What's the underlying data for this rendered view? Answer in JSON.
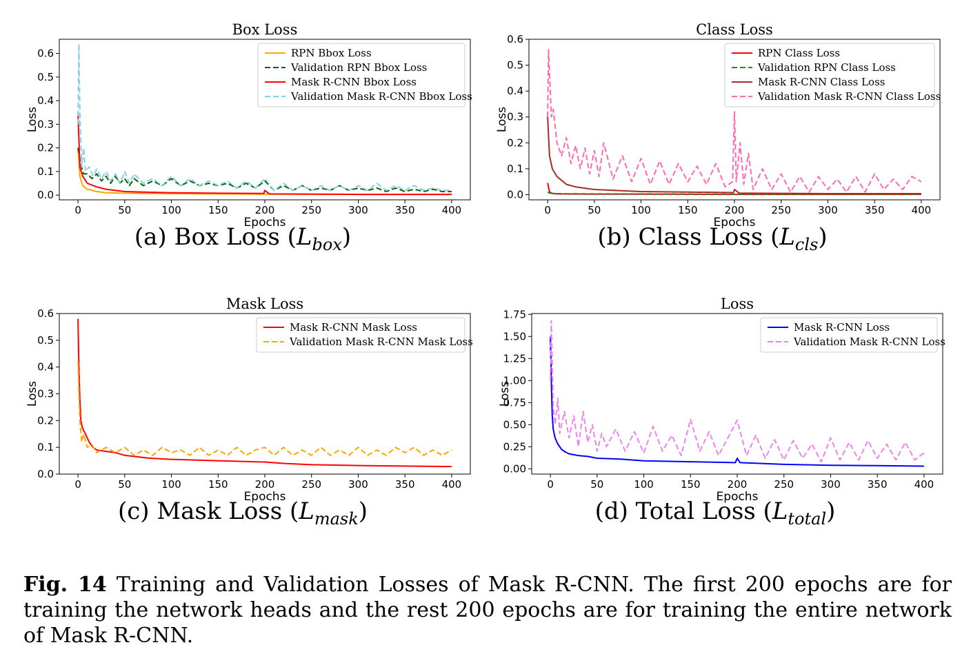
{
  "figure": {
    "caption_label": "Fig. 14",
    "caption_text": "Training and Validation Losses of Mask R-CNN. The first 200 epochs are for training the network heads and the rest 200 epochs are for training the entire network of Mask R-CNN."
  },
  "chart_data": [
    {
      "type": "line",
      "title": "Box Loss",
      "subcaption": {
        "prefix": "(a) Box Loss (",
        "var": "L",
        "sub": "box",
        "suffix": ")"
      },
      "xlabel": "Epochs",
      "ylabel": "Loss",
      "xlim": [
        -20,
        420
      ],
      "ylim": [
        -0.02,
        0.66
      ],
      "xticks": [
        0,
        50,
        100,
        150,
        200,
        250,
        300,
        350,
        400
      ],
      "yticks": [
        0.0,
        0.1,
        0.2,
        0.3,
        0.4,
        0.5,
        0.6
      ],
      "yfmt": 1,
      "legend_position": "top-right",
      "series": [
        {
          "name": "RPN Bbox Loss",
          "color": "#ffa500",
          "dash": "solid",
          "x": [
            0,
            2,
            5,
            10,
            20,
            30,
            50,
            100,
            150,
            200,
            250,
            300,
            350,
            400
          ],
          "y": [
            0.2,
            0.08,
            0.04,
            0.025,
            0.015,
            0.01,
            0.008,
            0.006,
            0.005,
            0.004,
            0.004,
            0.003,
            0.003,
            0.003
          ]
        },
        {
          "name": "Validation RPN Bbox Loss",
          "color": "#006400",
          "dash": "dashed",
          "x": [
            0,
            3,
            6,
            10,
            15,
            20,
            25,
            30,
            35,
            40,
            45,
            50,
            55,
            60,
            70,
            80,
            90,
            100,
            110,
            120,
            130,
            140,
            150,
            160,
            170,
            180,
            190,
            200,
            210,
            220,
            230,
            240,
            250,
            260,
            270,
            280,
            290,
            300,
            310,
            320,
            330,
            340,
            350,
            360,
            370,
            380,
            390,
            400
          ],
          "y": [
            0.2,
            0.13,
            0.09,
            0.09,
            0.07,
            0.09,
            0.06,
            0.08,
            0.05,
            0.08,
            0.05,
            0.07,
            0.04,
            0.07,
            0.04,
            0.06,
            0.04,
            0.07,
            0.04,
            0.06,
            0.04,
            0.05,
            0.04,
            0.05,
            0.03,
            0.05,
            0.03,
            0.06,
            0.02,
            0.04,
            0.02,
            0.04,
            0.02,
            0.03,
            0.02,
            0.04,
            0.02,
            0.03,
            0.02,
            0.03,
            0.015,
            0.03,
            0.015,
            0.025,
            0.015,
            0.025,
            0.015,
            0.015
          ]
        },
        {
          "name": "Mask R-CNN Bbox Loss",
          "color": "#ff0000",
          "dash": "solid",
          "x": [
            0,
            2,
            5,
            10,
            20,
            30,
            50,
            100,
            150,
            199,
            200,
            205,
            250,
            300,
            350,
            400
          ],
          "y": [
            0.35,
            0.12,
            0.08,
            0.05,
            0.035,
            0.025,
            0.015,
            0.01,
            0.008,
            0.007,
            0.02,
            0.005,
            0.004,
            0.003,
            0.003,
            0.003
          ]
        },
        {
          "name": "Validation Mask R-CNN Bbox Loss",
          "color": "#87ceeb",
          "dash": "dashed",
          "x": [
            0,
            1,
            2,
            4,
            6,
            8,
            12,
            16,
            20,
            25,
            30,
            35,
            40,
            45,
            50,
            55,
            60,
            70,
            80,
            90,
            100,
            110,
            120,
            130,
            140,
            150,
            160,
            170,
            180,
            190,
            200,
            210,
            220,
            230,
            240,
            250,
            260,
            270,
            280,
            290,
            300,
            310,
            320,
            330,
            340,
            350,
            360,
            370,
            380,
            390,
            400
          ],
          "y": [
            0.3,
            0.64,
            0.35,
            0.12,
            0.2,
            0.1,
            0.12,
            0.08,
            0.11,
            0.07,
            0.1,
            0.06,
            0.09,
            0.05,
            0.1,
            0.05,
            0.09,
            0.05,
            0.07,
            0.04,
            0.08,
            0.04,
            0.07,
            0.04,
            0.06,
            0.04,
            0.06,
            0.03,
            0.06,
            0.03,
            0.07,
            0.02,
            0.05,
            0.02,
            0.04,
            0.02,
            0.04,
            0.02,
            0.04,
            0.02,
            0.04,
            0.02,
            0.05,
            0.02,
            0.04,
            0.02,
            0.04,
            0.02,
            0.03,
            0.02,
            0.02
          ]
        }
      ]
    },
    {
      "type": "line",
      "title": "Class Loss",
      "subcaption": {
        "prefix": "(b) Class Loss (",
        "var": "L",
        "sub": "cls",
        "suffix": ")"
      },
      "xlabel": "Epochs",
      "ylabel": "Loss",
      "xlim": [
        -20,
        420
      ],
      "ylim": [
        -0.02,
        0.6
      ],
      "xticks": [
        0,
        50,
        100,
        150,
        200,
        250,
        300,
        350,
        400
      ],
      "yticks": [
        0.0,
        0.1,
        0.2,
        0.3,
        0.4,
        0.5,
        0.6
      ],
      "yfmt": 1,
      "legend_position": "top-right",
      "series": [
        {
          "name": "RPN Class Loss",
          "color": "#ff0000",
          "dash": "solid",
          "x": [
            0,
            2,
            5,
            10,
            50,
            100,
            200,
            300,
            400
          ],
          "y": [
            0.045,
            0.01,
            0.005,
            0.003,
            0.002,
            0.002,
            0.001,
            0.001,
            0.001
          ]
        },
        {
          "name": "Validation RPN Class Loss",
          "color": "#228b22",
          "dash": "dashed",
          "x": [
            0,
            2,
            5,
            10,
            50,
            100,
            200,
            300,
            400
          ],
          "y": [
            0.01,
            0.006,
            0.005,
            0.004,
            0.003,
            0.003,
            0.002,
            0.002,
            0.002
          ]
        },
        {
          "name": "Mask R-CNN Class Loss",
          "color": "#a52a2a",
          "dash": "solid",
          "x": [
            0,
            2,
            5,
            10,
            20,
            30,
            50,
            100,
            150,
            199,
            200,
            205,
            250,
            300,
            350,
            400
          ],
          "y": [
            0.3,
            0.15,
            0.1,
            0.07,
            0.04,
            0.03,
            0.02,
            0.012,
            0.01,
            0.008,
            0.02,
            0.006,
            0.005,
            0.004,
            0.004,
            0.004
          ]
        },
        {
          "name": "Validation Mask R-CNN Class Loss",
          "color": "#ff69b4",
          "dash": "dashed",
          "x": [
            0,
            1,
            2,
            4,
            6,
            10,
            15,
            20,
            25,
            30,
            35,
            40,
            45,
            50,
            55,
            60,
            70,
            80,
            90,
            100,
            110,
            120,
            130,
            140,
            150,
            160,
            170,
            180,
            190,
            198,
            200,
            202,
            206,
            210,
            215,
            220,
            230,
            240,
            250,
            260,
            270,
            280,
            290,
            300,
            310,
            320,
            330,
            340,
            350,
            360,
            370,
            380,
            390,
            400
          ],
          "y": [
            0.3,
            0.56,
            0.47,
            0.3,
            0.33,
            0.2,
            0.15,
            0.22,
            0.12,
            0.19,
            0.1,
            0.18,
            0.08,
            0.17,
            0.07,
            0.2,
            0.06,
            0.15,
            0.05,
            0.14,
            0.04,
            0.13,
            0.04,
            0.12,
            0.05,
            0.11,
            0.04,
            0.12,
            0.03,
            0.05,
            0.32,
            0.05,
            0.2,
            0.04,
            0.16,
            0.02,
            0.1,
            0.02,
            0.08,
            0.01,
            0.07,
            0.01,
            0.07,
            0.02,
            0.06,
            0.01,
            0.07,
            0.01,
            0.08,
            0.02,
            0.06,
            0.02,
            0.07,
            0.05
          ]
        }
      ]
    },
    {
      "type": "line",
      "title": "Mask Loss",
      "subcaption": {
        "prefix": "(c) Mask Loss (",
        "var": "L",
        "sub": "mask",
        "suffix": ")"
      },
      "xlabel": "Epochs",
      "ylabel": "Loss",
      "xlim": [
        -20,
        420
      ],
      "ylim": [
        0.0,
        0.6
      ],
      "xticks": [
        0,
        50,
        100,
        150,
        200,
        250,
        300,
        350,
        400
      ],
      "yticks": [
        0.0,
        0.1,
        0.2,
        0.3,
        0.4,
        0.5,
        0.6
      ],
      "yfmt": 1,
      "legend_position": "top-right",
      "series": [
        {
          "name": "Mask R-CNN Mask Loss",
          "color": "#ff0000",
          "dash": "solid",
          "x": [
            0,
            1,
            2,
            3,
            5,
            8,
            12,
            16,
            20,
            30,
            40,
            50,
            75,
            100,
            150,
            200,
            220,
            250,
            300,
            350,
            400
          ],
          "y": [
            0.58,
            0.4,
            0.28,
            0.2,
            0.17,
            0.15,
            0.12,
            0.1,
            0.09,
            0.085,
            0.08,
            0.07,
            0.06,
            0.055,
            0.05,
            0.045,
            0.04,
            0.035,
            0.032,
            0.03,
            0.028
          ]
        },
        {
          "name": "Validation Mask R-CNN Mask Loss",
          "color": "#ffa500",
          "dash": "dashed",
          "x": [
            0,
            1,
            2,
            4,
            6,
            10,
            15,
            20,
            30,
            40,
            50,
            60,
            70,
            80,
            90,
            100,
            110,
            120,
            130,
            140,
            150,
            160,
            170,
            180,
            190,
            200,
            210,
            220,
            230,
            240,
            250,
            260,
            270,
            280,
            290,
            300,
            310,
            320,
            330,
            340,
            350,
            360,
            370,
            380,
            390,
            400
          ],
          "y": [
            0.42,
            0.3,
            0.2,
            0.12,
            0.15,
            0.1,
            0.11,
            0.08,
            0.1,
            0.08,
            0.1,
            0.07,
            0.09,
            0.07,
            0.1,
            0.08,
            0.09,
            0.07,
            0.1,
            0.07,
            0.09,
            0.07,
            0.1,
            0.07,
            0.09,
            0.1,
            0.07,
            0.1,
            0.07,
            0.09,
            0.07,
            0.1,
            0.07,
            0.09,
            0.07,
            0.1,
            0.07,
            0.09,
            0.07,
            0.1,
            0.08,
            0.1,
            0.07,
            0.09,
            0.07,
            0.09
          ]
        }
      ]
    },
    {
      "type": "line",
      "title": "Loss",
      "subcaption": {
        "prefix": "(d) Total Loss (",
        "var": "L",
        "sub": "total",
        "suffix": ")"
      },
      "xlabel": "Epochs",
      "ylabel": "Loss",
      "xlim": [
        -20,
        420
      ],
      "ylim": [
        -0.06,
        1.76
      ],
      "xticks": [
        0,
        50,
        100,
        150,
        200,
        250,
        300,
        350,
        400
      ],
      "yticks": [
        0.0,
        0.25,
        0.5,
        0.75,
        1.0,
        1.25,
        1.5,
        1.75
      ],
      "yfmt": 2,
      "legend_position": "top-right",
      "series": [
        {
          "name": "Mask R-CNN Loss",
          "color": "#0000ff",
          "dash": "solid",
          "x": [
            0,
            1,
            2,
            3,
            5,
            8,
            12,
            16,
            20,
            30,
            40,
            50,
            75,
            100,
            150,
            198,
            200,
            203,
            250,
            300,
            350,
            400
          ],
          "y": [
            1.5,
            1.0,
            0.6,
            0.45,
            0.35,
            0.28,
            0.22,
            0.19,
            0.17,
            0.15,
            0.14,
            0.12,
            0.11,
            0.09,
            0.08,
            0.07,
            0.12,
            0.07,
            0.05,
            0.04,
            0.035,
            0.03
          ]
        },
        {
          "name": "Validation Mask R-CNN Loss",
          "color": "#ee82ee",
          "dash": "dashed",
          "x": [
            0,
            1,
            2,
            3,
            5,
            8,
            10,
            15,
            20,
            25,
            30,
            35,
            40,
            45,
            50,
            55,
            60,
            70,
            80,
            90,
            100,
            110,
            120,
            130,
            140,
            150,
            160,
            170,
            180,
            190,
            200,
            210,
            220,
            230,
            240,
            250,
            260,
            270,
            280,
            290,
            300,
            310,
            320,
            330,
            340,
            350,
            360,
            370,
            380,
            390,
            400
          ],
          "y": [
            1.0,
            1.68,
            1.2,
            0.7,
            0.5,
            0.8,
            0.4,
            0.65,
            0.35,
            0.6,
            0.25,
            0.65,
            0.3,
            0.5,
            0.2,
            0.4,
            0.25,
            0.45,
            0.2,
            0.42,
            0.18,
            0.48,
            0.2,
            0.38,
            0.15,
            0.56,
            0.2,
            0.42,
            0.15,
            0.35,
            0.55,
            0.15,
            0.38,
            0.12,
            0.33,
            0.1,
            0.32,
            0.12,
            0.28,
            0.08,
            0.35,
            0.1,
            0.3,
            0.1,
            0.32,
            0.12,
            0.28,
            0.1,
            0.3,
            0.1,
            0.18
          ]
        }
      ]
    }
  ]
}
